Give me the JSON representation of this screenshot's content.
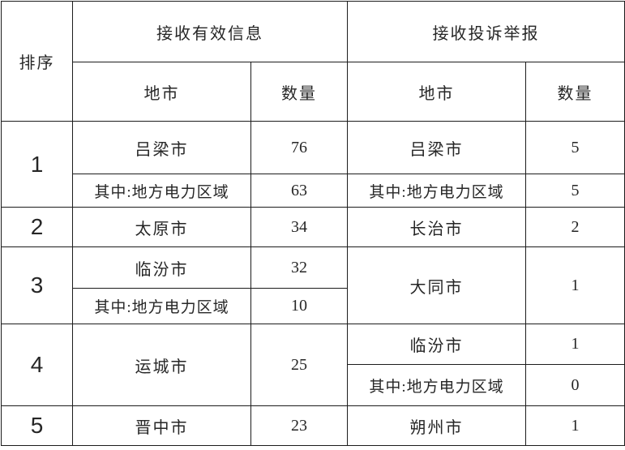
{
  "page": {
    "background_color": "#ffffff",
    "border_color": "#1c1c1c",
    "text_color": "#262626"
  },
  "table": {
    "header": {
      "rank": "排序",
      "valid_info_group": "接收有效信息",
      "complaint_group": "接收投诉举报",
      "city_left": "地市",
      "qty_left": "数量",
      "city_right": "地市",
      "qty_right": "数量"
    },
    "body": {
      "r1a": {
        "rank": "1",
        "city_l": "吕梁市",
        "qty_l": "76",
        "city_r": "吕梁市",
        "qty_r": "5"
      },
      "r1b": {
        "city_l": "其中:地方电力区域",
        "qty_l": "63",
        "city_r": "其中:地方电力区域",
        "qty_r": "5"
      },
      "r2": {
        "rank": "2",
        "city_l": "太原市",
        "qty_l": "34",
        "city_r": "长治市",
        "qty_r": "2"
      },
      "r3a": {
        "rank": "3",
        "city_l": "临汾市",
        "qty_l": "32",
        "city_r": "大同市",
        "qty_r": "1"
      },
      "r3b": {
        "city_l": "其中:地方电力区域",
        "qty_l": "10"
      },
      "r4a": {
        "rank": "4",
        "city_l": "运城市",
        "qty_l": "25",
        "city_r": "临汾市",
        "qty_r": "1"
      },
      "r4b": {
        "city_r": "其中:地方电力区域",
        "qty_r": "0"
      },
      "r5": {
        "rank": "5",
        "city_l": "晋中市",
        "qty_l": "23",
        "city_r": "朔州市",
        "qty_r": "1"
      }
    }
  }
}
